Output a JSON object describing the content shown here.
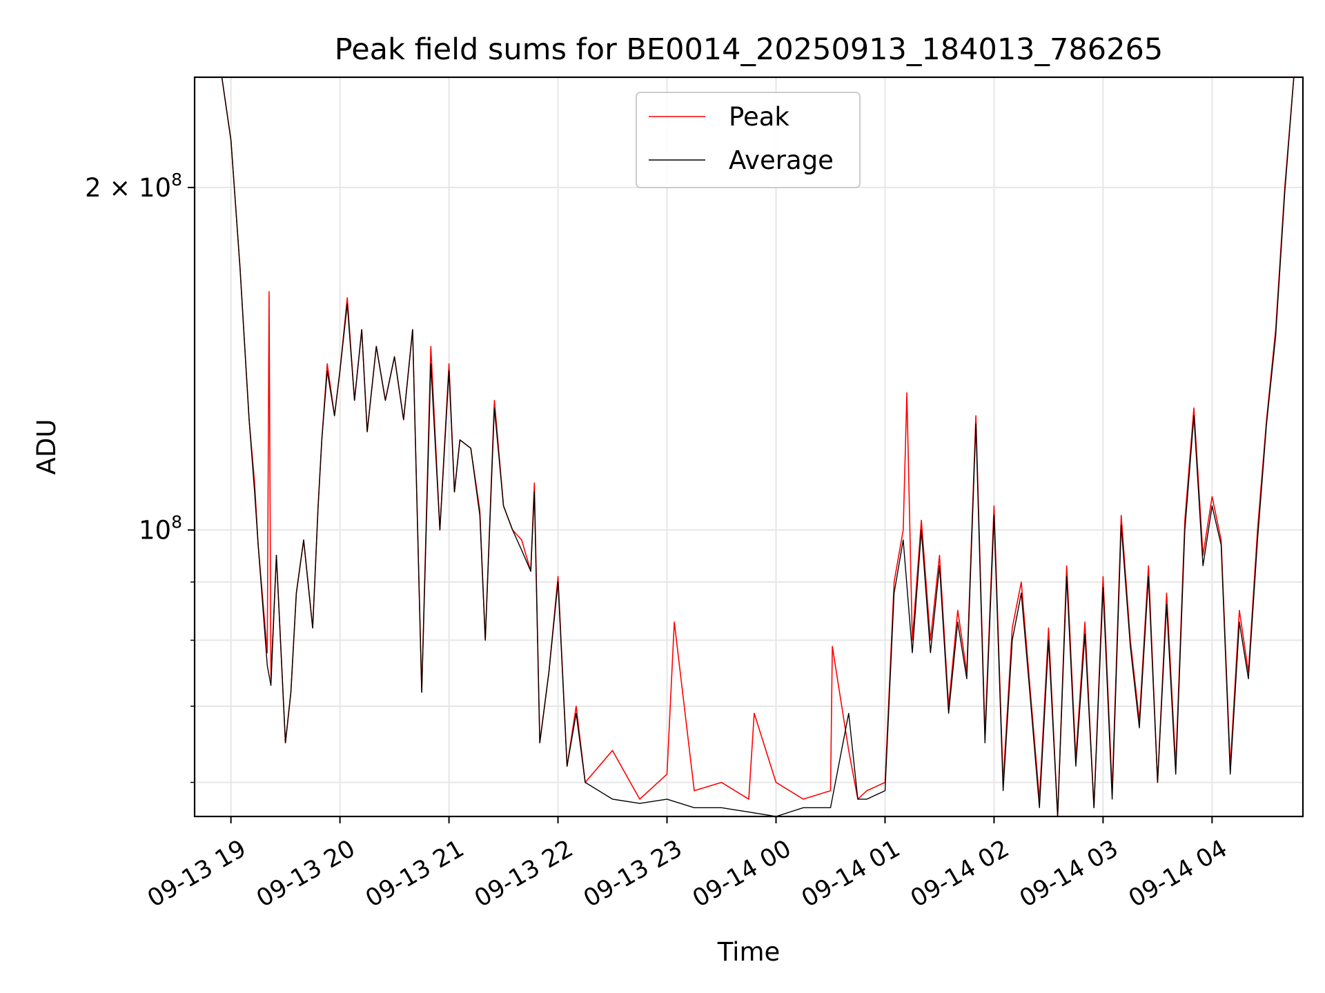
{
  "chart_data": {
    "type": "line",
    "title": "Peak field sums for BE0014_20250913_184013_786265",
    "xlabel": "Time",
    "ylabel": "ADU",
    "yscale": "log",
    "grid": true,
    "legend_position": "upper center",
    "xlim": [
      "2025-09-13 18:40",
      "2025-09-14 04:50"
    ],
    "ylim": [
      56000000,
      250000000
    ],
    "x_ticks": [
      {
        "value": "2025-09-13 19:00",
        "label": "09-13 19"
      },
      {
        "value": "2025-09-13 20:00",
        "label": "09-13 20"
      },
      {
        "value": "2025-09-13 21:00",
        "label": "09-13 21"
      },
      {
        "value": "2025-09-13 22:00",
        "label": "09-13 22"
      },
      {
        "value": "2025-09-13 23:00",
        "label": "09-13 23"
      },
      {
        "value": "2025-09-14 00:00",
        "label": "09-14 00"
      },
      {
        "value": "2025-09-14 01:00",
        "label": "09-14 01"
      },
      {
        "value": "2025-09-14 02:00",
        "label": "09-14 02"
      },
      {
        "value": "2025-09-14 03:00",
        "label": "09-14 03"
      },
      {
        "value": "2025-09-14 04:00",
        "label": "09-14 04"
      }
    ],
    "y_ticks_major": [
      {
        "value": 100000000,
        "base": "10",
        "exp": "8"
      },
      {
        "value": 200000000,
        "base": "2 × 10",
        "exp": "8"
      }
    ],
    "y_ticks_minor": [
      60000000,
      70000000,
      80000000,
      90000000
    ],
    "series": [
      {
        "name": "Peak",
        "color": "#ff0000",
        "x": [
          "2025-09-13 18:40",
          "2025-09-13 18:55",
          "2025-09-13 19:00",
          "2025-09-13 19:05",
          "2025-09-13 19:10",
          "2025-09-13 19:13",
          "2025-09-13 19:15",
          "2025-09-13 19:20",
          "2025-09-13 19:21",
          "2025-09-13 19:22",
          "2025-09-13 19:25",
          "2025-09-13 19:30",
          "2025-09-13 19:33",
          "2025-09-13 19:36",
          "2025-09-13 19:40",
          "2025-09-13 19:45",
          "2025-09-13 19:48",
          "2025-09-13 19:50",
          "2025-09-13 19:53",
          "2025-09-13 19:57",
          "2025-09-13 20:00",
          "2025-09-13 20:04",
          "2025-09-13 20:08",
          "2025-09-13 20:12",
          "2025-09-13 20:15",
          "2025-09-13 20:20",
          "2025-09-13 20:25",
          "2025-09-13 20:30",
          "2025-09-13 20:35",
          "2025-09-13 20:40",
          "2025-09-13 20:45",
          "2025-09-13 20:50",
          "2025-09-13 20:55",
          "2025-09-13 21:00",
          "2025-09-13 21:03",
          "2025-09-13 21:06",
          "2025-09-13 21:12",
          "2025-09-13 21:17",
          "2025-09-13 21:20",
          "2025-09-13 21:25",
          "2025-09-13 21:30",
          "2025-09-13 21:35",
          "2025-09-13 21:40",
          "2025-09-13 21:45",
          "2025-09-13 21:47",
          "2025-09-13 21:50",
          "2025-09-13 21:55",
          "2025-09-13 22:00",
          "2025-09-13 22:05",
          "2025-09-13 22:10",
          "2025-09-13 22:15",
          "2025-09-13 22:30",
          "2025-09-13 22:45",
          "2025-09-13 23:00",
          "2025-09-13 23:04",
          "2025-09-13 23:15",
          "2025-09-13 23:30",
          "2025-09-13 23:45",
          "2025-09-13 23:48",
          "2025-09-14 00:00",
          "2025-09-14 00:15",
          "2025-09-14 00:30",
          "2025-09-14 00:31",
          "2025-09-14 00:40",
          "2025-09-14 00:45",
          "2025-09-14 00:50",
          "2025-09-14 01:00",
          "2025-09-14 01:05",
          "2025-09-14 01:10",
          "2025-09-14 01:12",
          "2025-09-14 01:15",
          "2025-09-14 01:20",
          "2025-09-14 01:25",
          "2025-09-14 01:30",
          "2025-09-14 01:35",
          "2025-09-14 01:40",
          "2025-09-14 01:45",
          "2025-09-14 01:50",
          "2025-09-14 01:55",
          "2025-09-14 02:00",
          "2025-09-14 02:05",
          "2025-09-14 02:10",
          "2025-09-14 02:15",
          "2025-09-14 02:20",
          "2025-09-14 02:25",
          "2025-09-14 02:30",
          "2025-09-14 02:35",
          "2025-09-14 02:40",
          "2025-09-14 02:45",
          "2025-09-14 02:50",
          "2025-09-14 02:55",
          "2025-09-14 03:00",
          "2025-09-14 03:05",
          "2025-09-14 03:10",
          "2025-09-14 03:15",
          "2025-09-14 03:20",
          "2025-09-14 03:25",
          "2025-09-14 03:30",
          "2025-09-14 03:35",
          "2025-09-14 03:40",
          "2025-09-14 03:45",
          "2025-09-14 03:50",
          "2025-09-14 03:55",
          "2025-09-14 04:00",
          "2025-09-14 04:05",
          "2025-09-14 04:10",
          "2025-09-14 04:15",
          "2025-09-14 04:20",
          "2025-09-14 04:25",
          "2025-09-14 04:30",
          "2025-09-14 04:35",
          "2025-09-14 04:40",
          "2025-09-14 04:45",
          "2025-09-14 04:50"
        ],
        "y": [
          250000000,
          250000000,
          220000000,
          170000000,
          125000000,
          110000000,
          97000000,
          78000000,
          162000000,
          74000000,
          95000000,
          65000000,
          72000000,
          88000000,
          98000000,
          82000000,
          105000000,
          120000000,
          140000000,
          126000000,
          138000000,
          160000000,
          130000000,
          150000000,
          122000000,
          145000000,
          130000000,
          142000000,
          125000000,
          150000000,
          72000000,
          145000000,
          100000000,
          140000000,
          108000000,
          120000000,
          118000000,
          104000000,
          80000000,
          130000000,
          105000000,
          100000000,
          98000000,
          92000000,
          110000000,
          65000000,
          75000000,
          91000000,
          62000000,
          70000000,
          60000000,
          64000000,
          58000000,
          61000000,
          83000000,
          59000000,
          60000000,
          58000000,
          69000000,
          60000000,
          58000000,
          59000000,
          79000000,
          64000000,
          58000000,
          59000000,
          60000000,
          90000000,
          100000000,
          132000000,
          80000000,
          102000000,
          80000000,
          95000000,
          70000000,
          85000000,
          75000000,
          126000000,
          66000000,
          105000000,
          60000000,
          82000000,
          90000000,
          72000000,
          58000000,
          82000000,
          56000000,
          93000000,
          63000000,
          83000000,
          57000000,
          91000000,
          59000000,
          103000000,
          80000000,
          68000000,
          93000000,
          60000000,
          88000000,
          62000000,
          102000000,
          128000000,
          95000000,
          107000000,
          98000000,
          62000000,
          85000000,
          75000000,
          100000000,
          125000000,
          150000000,
          200000000,
          250000000,
          250000000
        ]
      },
      {
        "name": "Average",
        "color": "#000000",
        "x": [
          "2025-09-13 18:40",
          "2025-09-13 18:55",
          "2025-09-13 19:00",
          "2025-09-13 19:05",
          "2025-09-13 19:10",
          "2025-09-13 19:13",
          "2025-09-13 19:15",
          "2025-09-13 19:20",
          "2025-09-13 19:22",
          "2025-09-13 19:25",
          "2025-09-13 19:30",
          "2025-09-13 19:33",
          "2025-09-13 19:36",
          "2025-09-13 19:40",
          "2025-09-13 19:45",
          "2025-09-13 19:48",
          "2025-09-13 19:50",
          "2025-09-13 19:53",
          "2025-09-13 19:57",
          "2025-09-13 20:00",
          "2025-09-13 20:04",
          "2025-09-13 20:08",
          "2025-09-13 20:12",
          "2025-09-13 20:15",
          "2025-09-13 20:20",
          "2025-09-13 20:25",
          "2025-09-13 20:30",
          "2025-09-13 20:35",
          "2025-09-13 20:40",
          "2025-09-13 20:45",
          "2025-09-13 20:50",
          "2025-09-13 20:55",
          "2025-09-13 21:00",
          "2025-09-13 21:03",
          "2025-09-13 21:06",
          "2025-09-13 21:12",
          "2025-09-13 21:17",
          "2025-09-13 21:20",
          "2025-09-13 21:25",
          "2025-09-13 21:30",
          "2025-09-13 21:35",
          "2025-09-13 21:40",
          "2025-09-13 21:45",
          "2025-09-13 21:47",
          "2025-09-13 21:50",
          "2025-09-13 21:55",
          "2025-09-13 22:00",
          "2025-09-13 22:05",
          "2025-09-13 22:10",
          "2025-09-13 22:15",
          "2025-09-13 22:30",
          "2025-09-13 22:45",
          "2025-09-13 23:00",
          "2025-09-13 23:15",
          "2025-09-13 23:30",
          "2025-09-13 23:45",
          "2025-09-14 00:00",
          "2025-09-14 00:15",
          "2025-09-14 00:30",
          "2025-09-14 00:40",
          "2025-09-14 00:45",
          "2025-09-14 00:50",
          "2025-09-14 01:00",
          "2025-09-14 01:05",
          "2025-09-14 01:10",
          "2025-09-14 01:15",
          "2025-09-14 01:20",
          "2025-09-14 01:25",
          "2025-09-14 01:30",
          "2025-09-14 01:35",
          "2025-09-14 01:40",
          "2025-09-14 01:45",
          "2025-09-14 01:50",
          "2025-09-14 01:55",
          "2025-09-14 02:00",
          "2025-09-14 02:05",
          "2025-09-14 02:10",
          "2025-09-14 02:15",
          "2025-09-14 02:20",
          "2025-09-14 02:25",
          "2025-09-14 02:30",
          "2025-09-14 02:35",
          "2025-09-14 02:40",
          "2025-09-14 02:45",
          "2025-09-14 02:50",
          "2025-09-14 02:55",
          "2025-09-14 03:00",
          "2025-09-14 03:05",
          "2025-09-14 03:10",
          "2025-09-14 03:15",
          "2025-09-14 03:20",
          "2025-09-14 03:25",
          "2025-09-14 03:30",
          "2025-09-14 03:35",
          "2025-09-14 03:40",
          "2025-09-14 03:45",
          "2025-09-14 03:50",
          "2025-09-14 03:55",
          "2025-09-14 04:00",
          "2025-09-14 04:05",
          "2025-09-14 04:10",
          "2025-09-14 04:15",
          "2025-09-14 04:20",
          "2025-09-14 04:25",
          "2025-09-14 04:30",
          "2025-09-14 04:35",
          "2025-09-14 04:40",
          "2025-09-14 04:45",
          "2025-09-14 04:50"
        ],
        "y": [
          250000000,
          250000000,
          220000000,
          170000000,
          125000000,
          108000000,
          97000000,
          76000000,
          73000000,
          95000000,
          65000000,
          72000000,
          88000000,
          98000000,
          82000000,
          105000000,
          120000000,
          138000000,
          126000000,
          138000000,
          158000000,
          130000000,
          150000000,
          122000000,
          145000000,
          130000000,
          142000000,
          125000000,
          150000000,
          72000000,
          140000000,
          100000000,
          138000000,
          108000000,
          120000000,
          118000000,
          103000000,
          80000000,
          128000000,
          105000000,
          100000000,
          96000000,
          92000000,
          108000000,
          65000000,
          75000000,
          90000000,
          62000000,
          69000000,
          60000000,
          58000000,
          57500000,
          58000000,
          57000000,
          57000000,
          56500000,
          56000000,
          57000000,
          57000000,
          69000000,
          58000000,
          58000000,
          59000000,
          88000000,
          98000000,
          78000000,
          100000000,
          78000000,
          93000000,
          69000000,
          83000000,
          74000000,
          124000000,
          65000000,
          103000000,
          59000000,
          80000000,
          88000000,
          71000000,
          57000000,
          80000000,
          56000000,
          91000000,
          62000000,
          81000000,
          57000000,
          89000000,
          58000000,
          101000000,
          79000000,
          67000000,
          91000000,
          60000000,
          86000000,
          61000000,
          100000000,
          126000000,
          93000000,
          105000000,
          97000000,
          61000000,
          83000000,
          74000000,
          98000000,
          124000000,
          148000000,
          198000000,
          250000000,
          250000000
        ]
      }
    ]
  }
}
